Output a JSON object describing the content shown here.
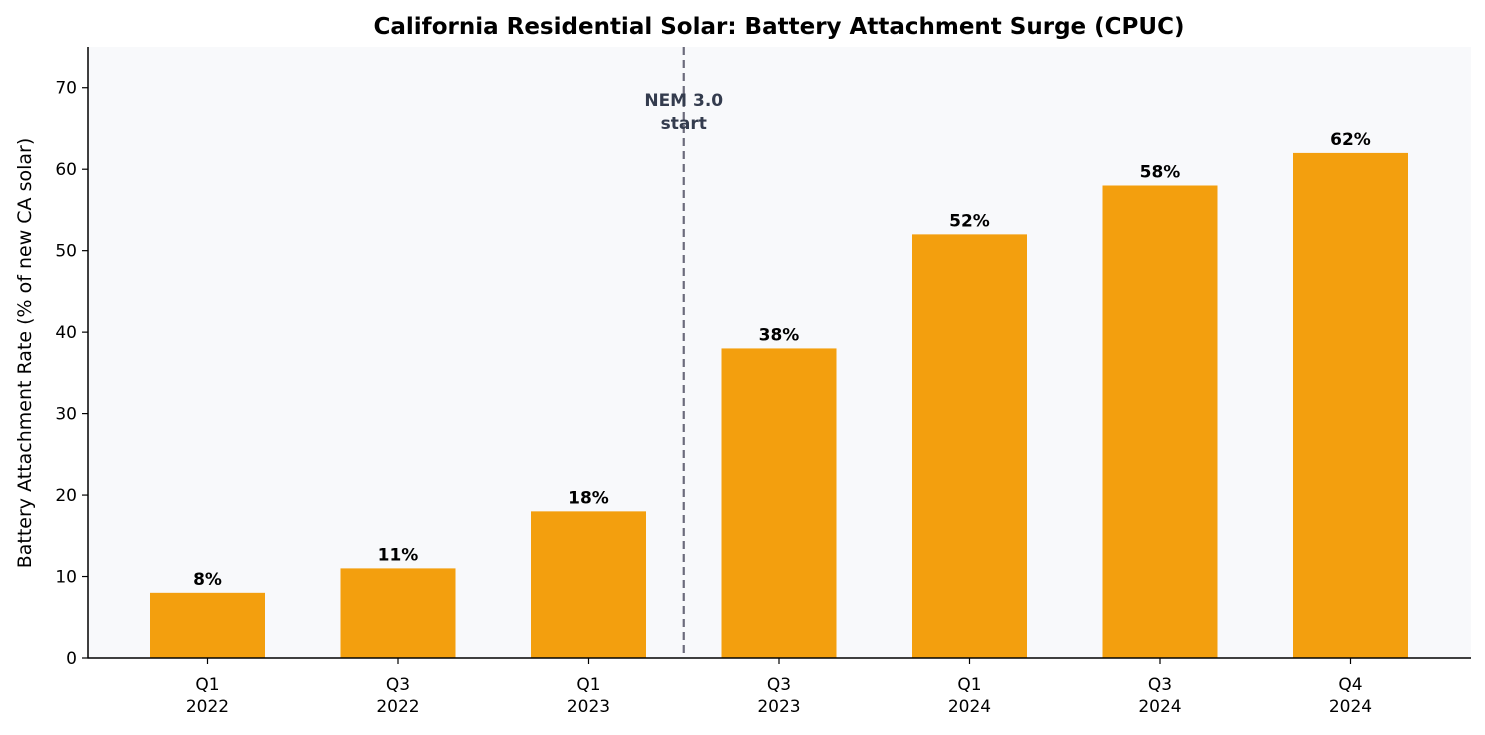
{
  "chart_data": {
    "type": "bar",
    "title": "California Residential Solar: Battery Attachment Surge (CPUC)",
    "xlabel": "",
    "ylabel": "Battery Attachment Rate (% of new CA solar)",
    "categories": [
      [
        "Q1",
        "2022"
      ],
      [
        "Q3",
        "2022"
      ],
      [
        "Q1",
        "2023"
      ],
      [
        "Q3",
        "2023"
      ],
      [
        "Q1",
        "2024"
      ],
      [
        "Q3",
        "2024"
      ],
      [
        "Q4",
        "2024"
      ]
    ],
    "values": [
      8,
      11,
      18,
      38,
      52,
      58,
      62
    ],
    "value_labels": [
      "8%",
      "11%",
      "18%",
      "38%",
      "52%",
      "58%",
      "62%"
    ],
    "ylim": [
      0,
      75
    ],
    "yticks": [
      0,
      10,
      20,
      30,
      40,
      50,
      60,
      70
    ],
    "grid": false,
    "annotation": {
      "lines": [
        "NEM 3.0",
        "start"
      ],
      "after_category_index": 2
    },
    "colors": {
      "bar": "#F39F0E",
      "plot_background": "#F8F9FB",
      "marker_line": "#6B6B7B",
      "annotation_text": "#343C4E",
      "axis": "#000000"
    }
  }
}
